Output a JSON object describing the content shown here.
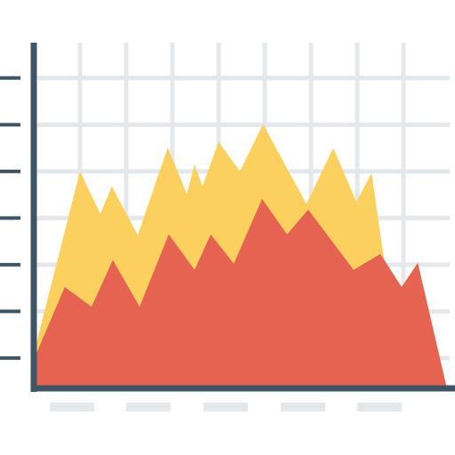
{
  "chart_data": {
    "type": "area",
    "xlim": [
      0,
      9
    ],
    "ylim": [
      0.35,
      7.72
    ],
    "xticks": [
      1,
      2,
      3,
      4,
      5,
      6,
      7,
      8
    ],
    "yticks": [
      1,
      2,
      3,
      4,
      5,
      6,
      7
    ],
    "grid": true,
    "series": [
      {
        "color": "#fbd05f",
        "x": [
          0.04,
          1.0,
          1.44,
          1.69,
          2.25,
          2.9,
          3.31,
          3.48,
          3.65,
          4.0,
          4.46,
          4.96,
          5.9,
          6.48,
          6.98,
          7.31,
          7.58,
          7.96,
          8.31,
          8.94
        ],
        "values": [
          1.25,
          5.0,
          4.09,
          4.68,
          3.63,
          5.51,
          4.52,
          5.15,
          4.68,
          5.63,
          5.0,
          6.01,
          4.3,
          5.5,
          4.35,
          4.96,
          3.11,
          2.52,
          3.04,
          0.35
        ]
      },
      {
        "color": "#e56350",
        "x": [
          0.04,
          0.67,
          1.25,
          1.71,
          2.29,
          2.92,
          3.48,
          3.83,
          4.33,
          4.94,
          5.48,
          5.94,
          6.92,
          7.5,
          7.96,
          8.31,
          8.94
        ],
        "values": [
          1.06,
          2.52,
          2.1,
          3.1,
          2.1,
          3.65,
          2.89,
          3.65,
          3.02,
          4.41,
          3.65,
          4.18,
          2.89,
          3.23,
          2.52,
          3.04,
          0.35
        ]
      }
    ]
  }
}
